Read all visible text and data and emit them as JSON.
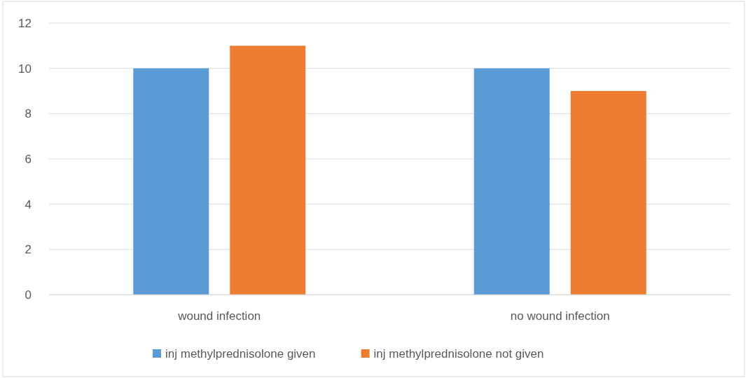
{
  "chart_data": {
    "type": "bar",
    "categories": [
      "wound infection",
      "no wound infection"
    ],
    "series": [
      {
        "name": "inj methylprednisolone given",
        "color": "#5b9bd5",
        "values": [
          10,
          10
        ]
      },
      {
        "name": "inj methylprednisolone not given",
        "color": "#ed7d31",
        "values": [
          11,
          9
        ]
      }
    ],
    "ylim": [
      0,
      12
    ],
    "yticks": [
      0,
      2,
      4,
      6,
      8,
      10,
      12
    ],
    "grid": "y",
    "legend": "bottom"
  }
}
